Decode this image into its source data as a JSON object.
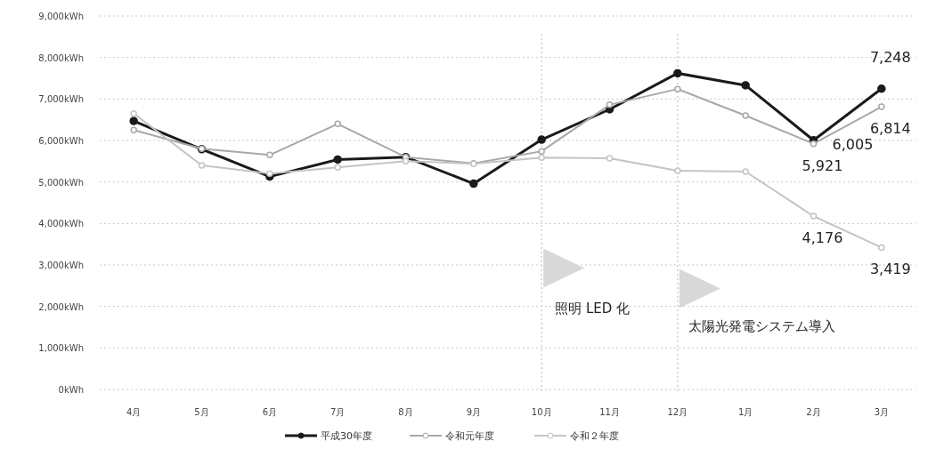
{
  "chart_data": {
    "type": "line",
    "categories": [
      "4月",
      "5月",
      "6月",
      "7月",
      "8月",
      "9月",
      "10月",
      "11月",
      "12月",
      "1月",
      "2月",
      "3月"
    ],
    "series": [
      {
        "name": "平成30年度",
        "color": "#1a1a1a",
        "values": [
          6470,
          5790,
          5130,
          5540,
          5600,
          4960,
          6020,
          6750,
          7620,
          7330,
          6005,
          7248
        ],
        "value_labels": [
          null,
          null,
          null,
          null,
          null,
          null,
          null,
          null,
          null,
          null,
          "6,005",
          "7,248"
        ]
      },
      {
        "name": "令和元年度",
        "color": "#a8a8a8",
        "values": [
          6250,
          5800,
          5650,
          6400,
          5600,
          5450,
          5740,
          6860,
          7240,
          6600,
          5921,
          6814
        ],
        "value_labels": [
          null,
          null,
          null,
          null,
          null,
          null,
          null,
          null,
          null,
          null,
          "5,921",
          "6,814"
        ]
      },
      {
        "name": "令和２年度",
        "color": "#c4c4c4",
        "values": [
          6650,
          5400,
          5200,
          5350,
          5500,
          5440,
          5590,
          5570,
          5270,
          5250,
          4176,
          3419
        ],
        "value_labels": [
          null,
          null,
          null,
          null,
          null,
          null,
          null,
          null,
          null,
          null,
          "4,176",
          "3,419"
        ]
      }
    ],
    "ylim": [
      0,
      9000
    ],
    "yticks": [
      {
        "value": 0,
        "label": "0kWh"
      },
      {
        "value": 1000,
        "label": "1,000kWh"
      },
      {
        "value": 2000,
        "label": "2,000kWh"
      },
      {
        "value": 3000,
        "label": "3,000kWh"
      },
      {
        "value": 4000,
        "label": "4,000kWh"
      },
      {
        "value": 5000,
        "label": "5,000kWh"
      },
      {
        "value": 6000,
        "label": "6,000kWh"
      },
      {
        "value": 7000,
        "label": "7,000kWh"
      },
      {
        "value": 8000,
        "label": "8,000kWh"
      },
      {
        "value": 9000,
        "label": "9,000kWh"
      }
    ],
    "ref_lines": [
      {
        "axis": "x",
        "value": "10月",
        "label": "照明 LED 化",
        "color": "#d0d0d0",
        "line_style": "dotted"
      },
      {
        "axis": "x",
        "value": "12月",
        "label": "太陽光発電システム導入",
        "color": "#d0d0d0",
        "line_style": "dotted"
      }
    ],
    "grid": "y",
    "legend": "bottom",
    "marker": "circle",
    "line_style": "solid"
  }
}
